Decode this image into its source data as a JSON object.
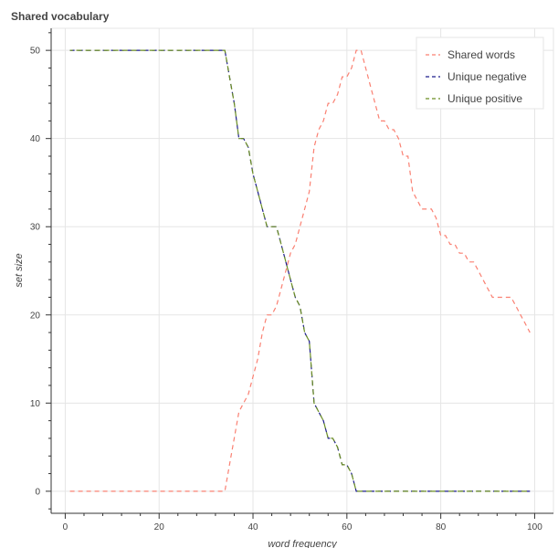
{
  "chart_data": {
    "type": "line",
    "title": "Shared vocabulary",
    "xlabel": "word frequency",
    "ylabel": "set size",
    "xlim": [
      -3,
      104
    ],
    "ylim": [
      -2.5,
      52.5
    ],
    "xticks": [
      0,
      20,
      40,
      60,
      80,
      100
    ],
    "yticks": [
      0,
      10,
      20,
      30,
      40,
      50
    ],
    "grid": true,
    "legend": "top-right",
    "series": [
      {
        "name": "Shared words",
        "color": "#fa8072",
        "dash": "dashed",
        "x": [
          1,
          34,
          35,
          37,
          38,
          39,
          41,
          42,
          43,
          44,
          45,
          46,
          47,
          48,
          49,
          50,
          51,
          52,
          53,
          54,
          55,
          56,
          57,
          58,
          59,
          60,
          61,
          62,
          63,
          64,
          65,
          66,
          67,
          68,
          69,
          70,
          71,
          72,
          73,
          74,
          75,
          76,
          77,
          78,
          79,
          80,
          81,
          82,
          83,
          84,
          85,
          86,
          87,
          88,
          89,
          90,
          91,
          92,
          93,
          94,
          95,
          96,
          97,
          98,
          99
        ],
        "y": [
          0,
          0,
          3,
          9,
          10,
          11,
          15,
          18,
          20,
          20,
          21,
          23,
          25,
          27,
          28,
          30,
          32,
          34,
          39,
          41,
          42,
          44,
          44,
          45,
          47,
          47,
          48,
          50,
          50,
          48,
          46,
          44,
          42,
          42,
          41,
          41,
          40,
          38,
          38,
          34,
          33,
          32,
          32,
          32,
          31,
          29,
          29,
          28,
          28,
          27,
          27,
          26,
          26,
          25,
          24,
          23,
          22,
          22,
          22,
          22,
          22,
          21,
          20,
          19,
          18
        ]
      },
      {
        "name": "Unique negative",
        "color": "#1c1c8c",
        "dash": "dashed",
        "x": [
          1,
          34,
          35,
          36,
          37,
          38,
          39,
          40,
          41,
          42,
          43,
          44,
          45,
          46,
          47,
          48,
          49,
          50,
          51,
          52,
          53,
          54,
          55,
          56,
          57,
          58,
          59,
          60,
          61,
          62,
          63,
          99
        ],
        "y": [
          50,
          50,
          47,
          44,
          40,
          40,
          39,
          36,
          34,
          32,
          30,
          30,
          30,
          28,
          26,
          24,
          22,
          21,
          18,
          17,
          10,
          9,
          8,
          6,
          6,
          5,
          3,
          3,
          2,
          0,
          0,
          0
        ]
      },
      {
        "name": "Unique positive",
        "color": "#6b8e23",
        "dash": "dashed",
        "x": [
          1,
          34,
          35,
          36,
          37,
          38,
          39,
          40,
          41,
          42,
          43,
          44,
          45,
          46,
          47,
          48,
          49,
          50,
          51,
          52,
          53,
          54,
          55,
          56,
          57,
          58,
          59,
          60,
          61,
          62,
          63,
          99
        ],
        "y": [
          50,
          50,
          47,
          44,
          40,
          40,
          39,
          36,
          34,
          32,
          30,
          30,
          30,
          28,
          26,
          24,
          22,
          21,
          18,
          17,
          10,
          9,
          8,
          6,
          6,
          5,
          3,
          3,
          2,
          0,
          0,
          0
        ]
      }
    ]
  }
}
